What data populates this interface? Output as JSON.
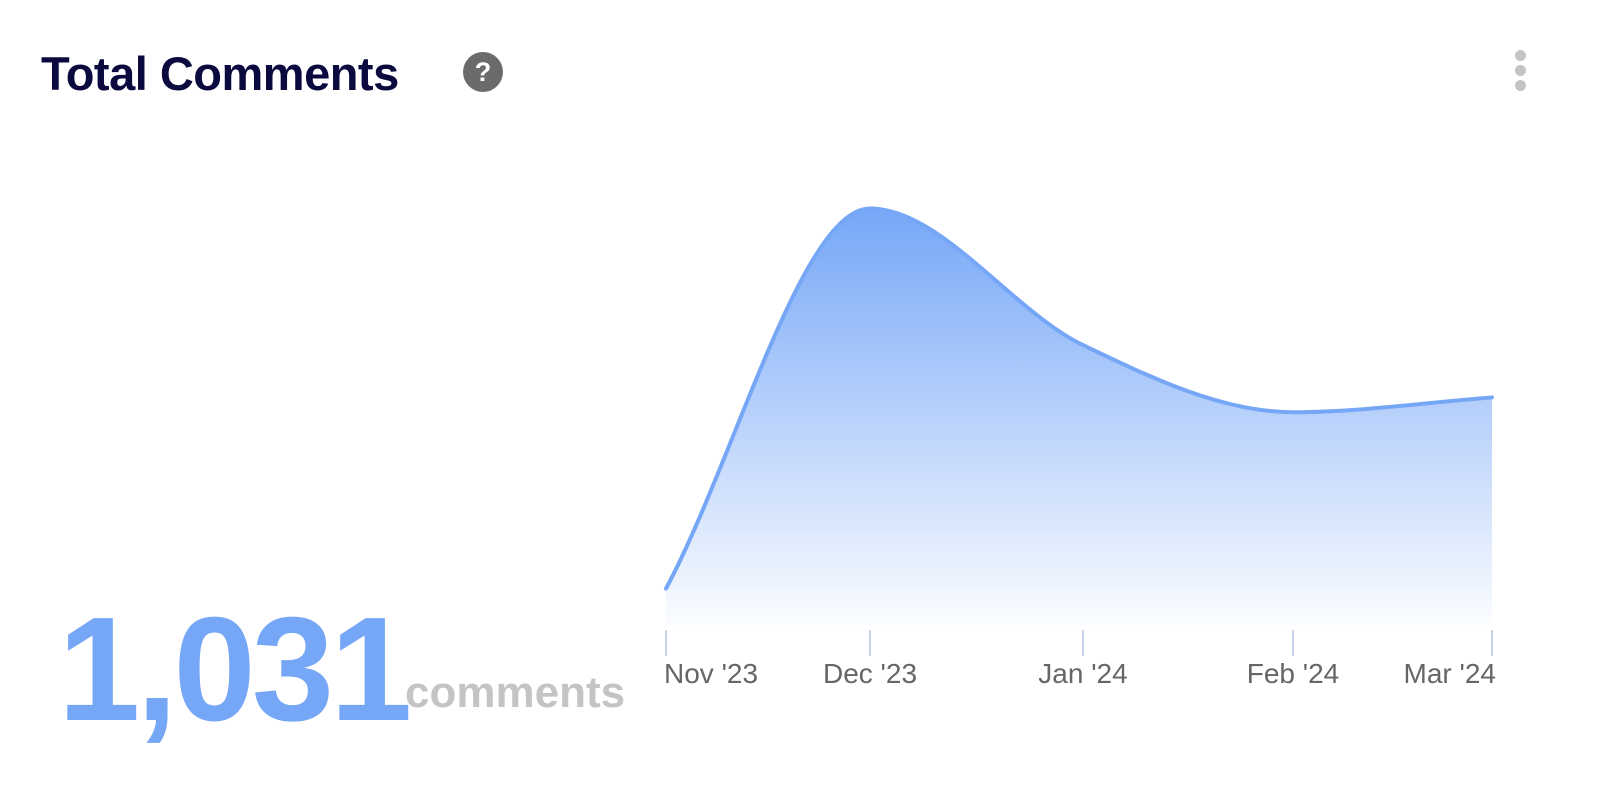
{
  "header": {
    "title": "Total Comments",
    "help_icon": "question-circle-icon",
    "menu_icon": "kebab-menu-icon"
  },
  "summary": {
    "value": "1,031",
    "unit": "comments"
  },
  "colors": {
    "accent": "#76a7f7",
    "title": "#0b0a3f"
  },
  "chart_data": {
    "type": "area",
    "categories": [
      "Nov '23",
      "Dec '23",
      "Jan '24",
      "Feb '24",
      "Mar '24"
    ],
    "values": [
      32,
      366,
      246,
      187,
      200
    ],
    "title": "",
    "xlabel": "",
    "ylabel": "",
    "ylim": [
      0,
      370
    ],
    "grid": false,
    "smooth": true,
    "color": "#76a7f7"
  }
}
